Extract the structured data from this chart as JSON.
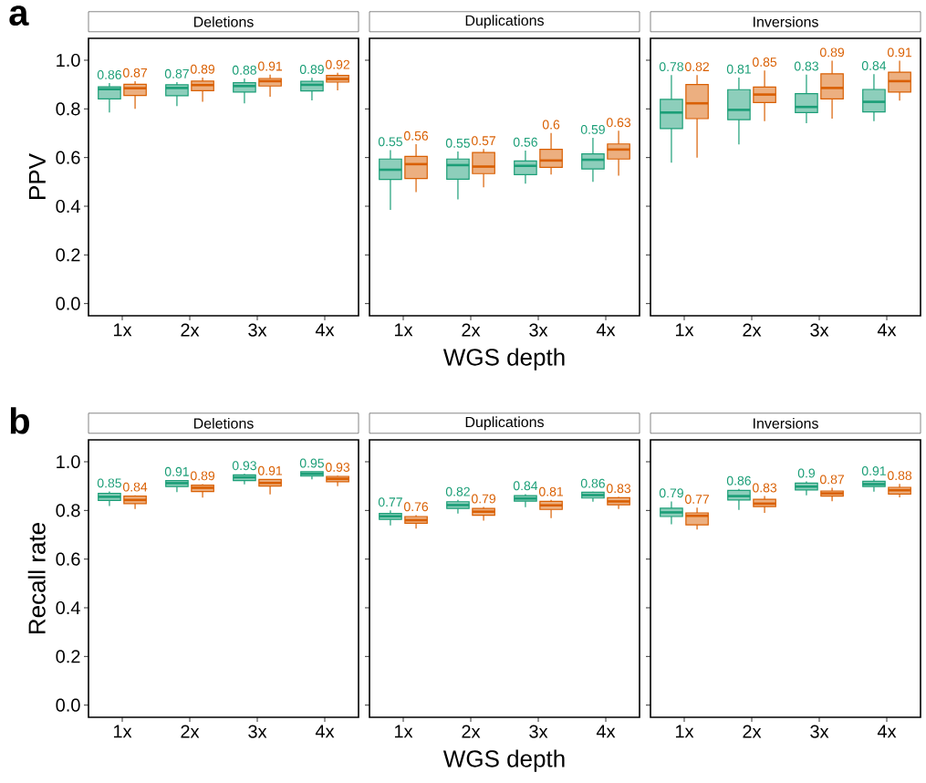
{
  "chart_data": [
    {
      "type": "box",
      "title": "Deletions",
      "ylabel": "PPV",
      "annotations": [
        "a"
      ],
      "categories": [
        "1x",
        "2x",
        "3x",
        "4x"
      ],
      "ylim": [
        -0.05,
        1.09
      ],
      "yticks": [
        {
          "value": 0,
          "label": "0.0"
        },
        {
          "value": 0.2,
          "label": "0.2"
        },
        {
          "value": 0.4,
          "label": "0.4"
        },
        {
          "value": 0.6,
          "label": "0.6"
        },
        {
          "value": 0.8,
          "label": "0.8"
        },
        {
          "value": 1,
          "label": "1.0"
        }
      ],
      "series": [
        {
          "color": "#1b9e77",
          "value_labels": [
            "0.86",
            "0.87",
            "0.88",
            "0.89"
          ],
          "boxes": [
            {
              "low": 0.785,
              "q1": 0.841,
              "median": 0.881,
              "q3": 0.891,
              "high": 0.906
            },
            {
              "low": 0.812,
              "q1": 0.854,
              "median": 0.886,
              "q3": 0.899,
              "high": 0.91
            },
            {
              "low": 0.823,
              "q1": 0.869,
              "median": 0.894,
              "q3": 0.908,
              "high": 0.925
            },
            {
              "low": 0.835,
              "q1": 0.874,
              "median": 0.899,
              "q3": 0.913,
              "high": 0.928
            }
          ]
        },
        {
          "color": "#d95f02",
          "value_labels": [
            "0.87",
            "0.89",
            "0.91",
            "0.92"
          ],
          "boxes": [
            {
              "low": 0.8,
              "q1": 0.855,
              "median": 0.885,
              "q3": 0.901,
              "high": 0.914
            },
            {
              "low": 0.829,
              "q1": 0.875,
              "median": 0.898,
              "q3": 0.914,
              "high": 0.929
            },
            {
              "low": 0.85,
              "q1": 0.894,
              "median": 0.914,
              "q3": 0.925,
              "high": 0.941
            },
            {
              "low": 0.876,
              "q1": 0.91,
              "median": 0.923,
              "q3": 0.938,
              "high": 0.948
            }
          ]
        }
      ]
    },
    {
      "type": "box",
      "title": "Duplications",
      "xlabel": "WGS depth",
      "tick_labels": "x",
      "categories": [
        "1x",
        "2x",
        "3x",
        "4x"
      ],
      "ylim": [
        -0.05,
        1.09
      ],
      "yticks": [
        {
          "value": 0,
          "label": null
        },
        {
          "value": 0.2,
          "label": null
        },
        {
          "value": 0.4,
          "label": null
        },
        {
          "value": 0.6,
          "label": null
        },
        {
          "value": 0.8,
          "label": null
        },
        {
          "value": 1,
          "label": null
        }
      ],
      "series": [
        {
          "color": "#1b9e77",
          "value_labels": [
            "0.55",
            "0.55",
            "0.56",
            "0.59"
          ],
          "boxes": [
            {
              "low": 0.385,
              "q1": 0.51,
              "median": 0.55,
              "q3": 0.594,
              "high": 0.631
            },
            {
              "low": 0.428,
              "q1": 0.511,
              "median": 0.569,
              "q3": 0.594,
              "high": 0.625
            },
            {
              "low": 0.493,
              "q1": 0.53,
              "median": 0.566,
              "q3": 0.586,
              "high": 0.629
            },
            {
              "low": 0.5,
              "q1": 0.553,
              "median": 0.591,
              "q3": 0.615,
              "high": 0.681
            }
          ]
        },
        {
          "color": "#d95f02",
          "value_labels": [
            "0.56",
            "0.57",
            "0.6",
            "0.63"
          ],
          "boxes": [
            {
              "low": 0.458,
              "q1": 0.514,
              "median": 0.573,
              "q3": 0.605,
              "high": 0.655
            },
            {
              "low": 0.478,
              "q1": 0.534,
              "median": 0.563,
              "q3": 0.621,
              "high": 0.635
            },
            {
              "low": 0.53,
              "q1": 0.56,
              "median": 0.588,
              "q3": 0.634,
              "high": 0.701
            },
            {
              "low": 0.526,
              "q1": 0.594,
              "median": 0.633,
              "q3": 0.656,
              "high": 0.71
            }
          ]
        }
      ]
    },
    {
      "type": "box",
      "title": "Inversions",
      "tick_labels": "x",
      "categories": [
        "1x",
        "2x",
        "3x",
        "4x"
      ],
      "ylim": [
        -0.05,
        1.09
      ],
      "yticks": [
        {
          "value": 0,
          "label": null
        },
        {
          "value": 0.2,
          "label": null
        },
        {
          "value": 0.4,
          "label": null
        },
        {
          "value": 0.6,
          "label": null
        },
        {
          "value": 0.8,
          "label": null
        },
        {
          "value": 1,
          "label": null
        }
      ],
      "series": [
        {
          "color": "#1b9e77",
          "value_labels": [
            "0.78",
            "0.81",
            "0.83",
            "0.84"
          ],
          "boxes": [
            {
              "low": 0.579,
              "q1": 0.719,
              "median": 0.785,
              "q3": 0.839,
              "high": 0.939
            },
            {
              "low": 0.654,
              "q1": 0.756,
              "median": 0.796,
              "q3": 0.879,
              "high": 0.929
            },
            {
              "low": 0.741,
              "q1": 0.785,
              "median": 0.808,
              "q3": 0.863,
              "high": 0.941
            },
            {
              "low": 0.75,
              "q1": 0.788,
              "median": 0.829,
              "q3": 0.88,
              "high": 0.943
            }
          ]
        },
        {
          "color": "#d95f02",
          "value_labels": [
            "0.82",
            "0.85",
            "0.89",
            "0.91"
          ],
          "boxes": [
            {
              "low": 0.6,
              "q1": 0.76,
              "median": 0.823,
              "q3": 0.9,
              "high": 0.939
            },
            {
              "low": 0.75,
              "q1": 0.826,
              "median": 0.859,
              "q3": 0.89,
              "high": 0.958
            },
            {
              "low": 0.76,
              "q1": 0.841,
              "median": 0.886,
              "q3": 0.944,
              "high": 0.998
            },
            {
              "low": 0.834,
              "q1": 0.869,
              "median": 0.914,
              "q3": 0.951,
              "high": 0.998
            }
          ]
        }
      ]
    },
    {
      "type": "box",
      "title": "Deletions",
      "ylabel": "Recall rate",
      "annotations": [
        "b"
      ],
      "categories": [
        "1x",
        "2x",
        "3x",
        "4x"
      ],
      "ylim": [
        -0.05,
        1.09
      ],
      "yticks": [
        {
          "value": 0,
          "label": "0.0"
        },
        {
          "value": 0.2,
          "label": "0.2"
        },
        {
          "value": 0.4,
          "label": "0.4"
        },
        {
          "value": 0.6,
          "label": "0.6"
        },
        {
          "value": 0.8,
          "label": "0.8"
        },
        {
          "value": 1,
          "label": "1.0"
        }
      ],
      "series": [
        {
          "color": "#1b9e77",
          "value_labels": [
            "0.85",
            "0.91",
            "0.93",
            "0.95"
          ],
          "boxes": [
            {
              "low": 0.818,
              "q1": 0.841,
              "median": 0.856,
              "q3": 0.87,
              "high": 0.878
            },
            {
              "low": 0.875,
              "q1": 0.898,
              "median": 0.912,
              "q3": 0.923,
              "high": 0.925
            },
            {
              "low": 0.907,
              "q1": 0.923,
              "median": 0.936,
              "q3": 0.946,
              "high": 0.95
            },
            {
              "low": 0.928,
              "q1": 0.941,
              "median": 0.95,
              "q3": 0.959,
              "high": 0.96
            }
          ]
        },
        {
          "color": "#d95f02",
          "value_labels": [
            "0.84",
            "0.89",
            "0.91",
            "0.93"
          ],
          "boxes": [
            {
              "low": 0.806,
              "q1": 0.828,
              "median": 0.843,
              "q3": 0.859,
              "high": 0.862
            },
            {
              "low": 0.853,
              "q1": 0.878,
              "median": 0.893,
              "q3": 0.904,
              "high": 0.908
            },
            {
              "low": 0.866,
              "q1": 0.9,
              "median": 0.913,
              "q3": 0.927,
              "high": 0.929
            },
            {
              "low": 0.9,
              "q1": 0.918,
              "median": 0.93,
              "q3": 0.94,
              "high": 0.943
            }
          ]
        }
      ]
    },
    {
      "type": "box",
      "title": "Duplications",
      "xlabel": "WGS depth",
      "tick_labels": "x",
      "categories": [
        "1x",
        "2x",
        "3x",
        "4x"
      ],
      "ylim": [
        -0.05,
        1.09
      ],
      "yticks": [
        {
          "value": 0,
          "label": null
        },
        {
          "value": 0.2,
          "label": null
        },
        {
          "value": 0.4,
          "label": null
        },
        {
          "value": 0.6,
          "label": null
        },
        {
          "value": 0.8,
          "label": null
        },
        {
          "value": 1,
          "label": null
        }
      ],
      "series": [
        {
          "color": "#1b9e77",
          "value_labels": [
            "0.77",
            "0.82",
            "0.84",
            "0.86"
          ],
          "boxes": [
            {
              "low": 0.738,
              "q1": 0.763,
              "median": 0.776,
              "q3": 0.788,
              "high": 0.8
            },
            {
              "low": 0.787,
              "q1": 0.808,
              "median": 0.822,
              "q3": 0.836,
              "high": 0.843
            },
            {
              "low": 0.813,
              "q1": 0.838,
              "median": 0.849,
              "q3": 0.861,
              "high": 0.867
            },
            {
              "low": 0.836,
              "q1": 0.851,
              "median": 0.863,
              "q3": 0.875,
              "high": 0.877
            }
          ]
        },
        {
          "color": "#d95f02",
          "value_labels": [
            "0.76",
            "0.79",
            "0.81",
            "0.83"
          ],
          "boxes": [
            {
              "low": 0.725,
              "q1": 0.747,
              "median": 0.76,
              "q3": 0.775,
              "high": 0.781
            },
            {
              "low": 0.758,
              "q1": 0.78,
              "median": 0.795,
              "q3": 0.808,
              "high": 0.814
            },
            {
              "low": 0.768,
              "q1": 0.804,
              "median": 0.821,
              "q3": 0.837,
              "high": 0.843
            },
            {
              "low": 0.806,
              "q1": 0.823,
              "median": 0.837,
              "q3": 0.852,
              "high": 0.856
            }
          ]
        }
      ]
    },
    {
      "type": "box",
      "title": "Inversions",
      "tick_labels": "x",
      "categories": [
        "1x",
        "2x",
        "3x",
        "4x"
      ],
      "ylim": [
        -0.05,
        1.09
      ],
      "yticks": [
        {
          "value": 0,
          "label": null
        },
        {
          "value": 0.2,
          "label": null
        },
        {
          "value": 0.4,
          "label": null
        },
        {
          "value": 0.6,
          "label": null
        },
        {
          "value": 0.8,
          "label": null
        },
        {
          "value": 1,
          "label": null
        }
      ],
      "series": [
        {
          "color": "#1b9e77",
          "value_labels": [
            "0.79",
            "0.86",
            "0.9",
            "0.91"
          ],
          "boxes": [
            {
              "low": 0.743,
              "q1": 0.775,
              "median": 0.792,
              "q3": 0.809,
              "high": 0.837
            },
            {
              "low": 0.802,
              "q1": 0.843,
              "median": 0.859,
              "q3": 0.882,
              "high": 0.888
            },
            {
              "low": 0.862,
              "q1": 0.884,
              "median": 0.898,
              "q3": 0.912,
              "high": 0.919
            },
            {
              "low": 0.877,
              "q1": 0.898,
              "median": 0.908,
              "q3": 0.92,
              "high": 0.928
            }
          ]
        },
        {
          "color": "#d95f02",
          "value_labels": [
            "0.77",
            "0.83",
            "0.87",
            "0.88"
          ],
          "boxes": [
            {
              "low": 0.722,
              "q1": 0.741,
              "median": 0.778,
              "q3": 0.79,
              "high": 0.812
            },
            {
              "low": 0.79,
              "q1": 0.816,
              "median": 0.828,
              "q3": 0.846,
              "high": 0.859
            },
            {
              "low": 0.838,
              "q1": 0.859,
              "median": 0.87,
              "q3": 0.88,
              "high": 0.893
            },
            {
              "low": 0.854,
              "q1": 0.867,
              "median": 0.883,
              "q3": 0.895,
              "high": 0.909
            }
          ]
        }
      ]
    }
  ]
}
